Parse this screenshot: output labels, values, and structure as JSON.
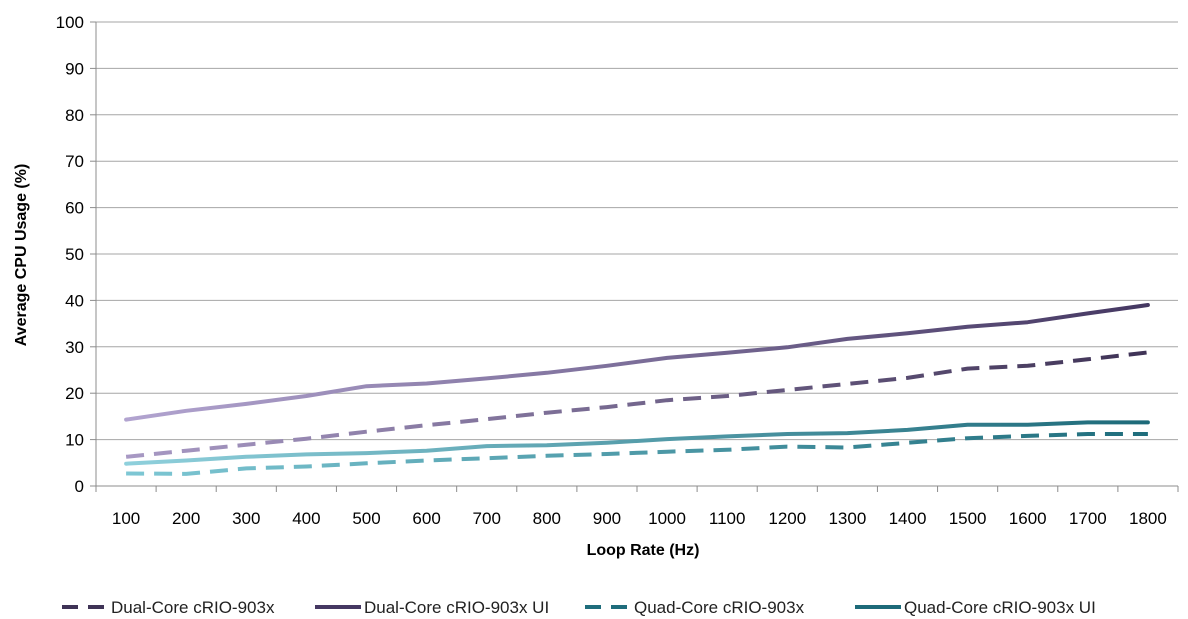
{
  "chart_data": {
    "type": "line",
    "title": "",
    "xlabel": "Loop Rate (Hz)",
    "ylabel": "Average CPU Usage (%)",
    "x": [
      100,
      200,
      300,
      400,
      500,
      600,
      700,
      800,
      900,
      1000,
      1100,
      1200,
      1300,
      1400,
      1500,
      1600,
      1700,
      1800
    ],
    "ylim": [
      0,
      100
    ],
    "yticks": [
      0,
      10,
      20,
      30,
      40,
      50,
      60,
      70,
      80,
      90,
      100
    ],
    "grid": true,
    "legend_position": "bottom",
    "series": [
      {
        "name": "Dual-Core cRIO-903x",
        "style": "dashed",
        "color_start": "#a899c4",
        "color_end": "#3f3356",
        "values": [
          6.3,
          7.6,
          8.9,
          10.2,
          11.7,
          13.1,
          14.4,
          15.8,
          17.0,
          18.5,
          19.4,
          20.7,
          22.0,
          23.3,
          25.3,
          25.9,
          27.3,
          28.8
        ]
      },
      {
        "name": "Dual-Core cRIO-903x UI",
        "style": "solid",
        "color_start": "#b2a4d0",
        "color_end": "#453862",
        "values": [
          14.3,
          16.2,
          17.7,
          19.4,
          21.5,
          22.1,
          23.2,
          24.4,
          25.9,
          27.6,
          28.7,
          29.9,
          31.7,
          32.9,
          34.3,
          35.3,
          37.2,
          39.0
        ]
      },
      {
        "name": "Quad-Core cRIO-903x",
        "style": "dashed",
        "color_start": "#7ec7d4",
        "color_end": "#1f6d7c",
        "values": [
          2.7,
          2.6,
          3.8,
          4.2,
          4.9,
          5.5,
          6.0,
          6.5,
          6.9,
          7.4,
          7.8,
          8.5,
          8.3,
          9.3,
          10.3,
          10.8,
          11.2,
          11.2
        ]
      },
      {
        "name": "Quad-Core cRIO-903x UI",
        "style": "solid",
        "color_start": "#8fd0dc",
        "color_end": "#1d6a79",
        "values": [
          4.8,
          5.5,
          6.3,
          6.8,
          7.1,
          7.6,
          8.6,
          8.8,
          9.3,
          10.1,
          10.7,
          11.2,
          11.4,
          12.1,
          13.2,
          13.2,
          13.7,
          13.7
        ]
      }
    ]
  }
}
